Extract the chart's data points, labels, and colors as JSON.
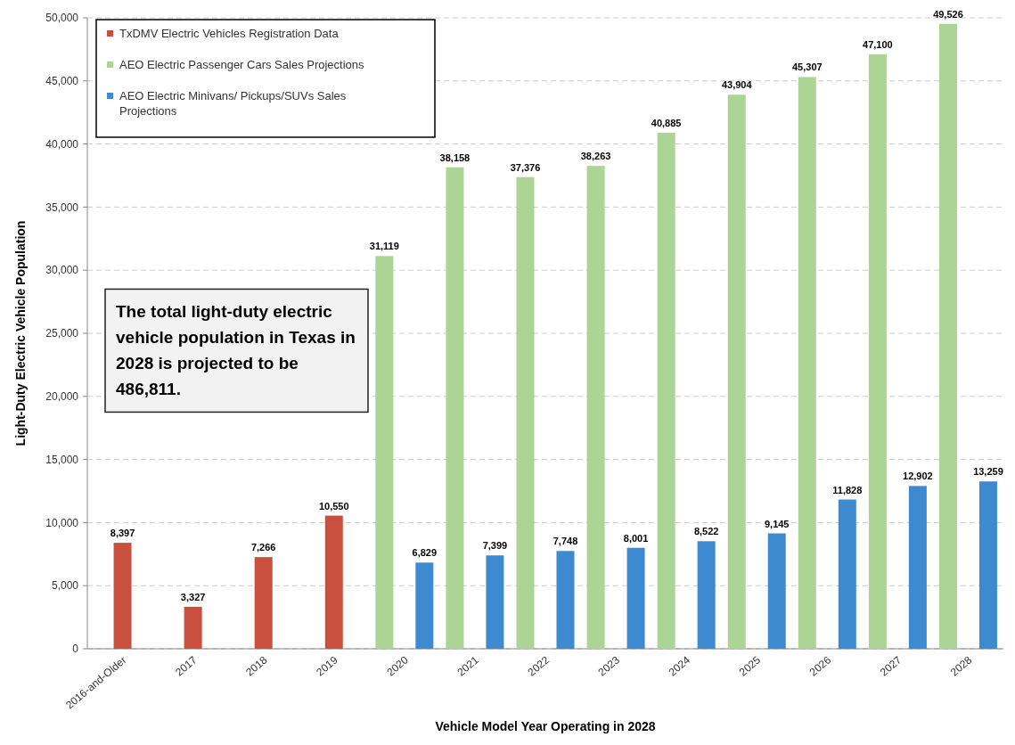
{
  "chart_data": {
    "type": "bar",
    "xlabel": "Vehicle Model Year Operating in 2028",
    "ylabel": "Light-Duty Electric Vehicle Population",
    "categories": [
      "2016-and-Older",
      "2017",
      "2018",
      "2019",
      "2020",
      "2021",
      "2022",
      "2023",
      "2024",
      "2025",
      "2026",
      "2027",
      "2028"
    ],
    "series": [
      {
        "name": "TxDMV Electric Vehicles Registration Data",
        "color": "#c9503f",
        "values": [
          8397,
          3327,
          7266,
          10550,
          null,
          null,
          null,
          null,
          null,
          null,
          null,
          null,
          null
        ],
        "value_labels": [
          "8,397",
          "3,327",
          "7,266",
          "10,550",
          null,
          null,
          null,
          null,
          null,
          null,
          null,
          null,
          null
        ]
      },
      {
        "name": "AEO Electric Passenger Cars Sales Projections",
        "color": "#abd495",
        "values": [
          null,
          null,
          null,
          null,
          31119,
          38158,
          37376,
          38263,
          40885,
          43904,
          45307,
          47100,
          49526
        ],
        "value_labels": [
          null,
          null,
          null,
          null,
          "31,119",
          "38,158",
          "37,376",
          "38,263",
          "40,885",
          "43,904",
          "45,307",
          "47,100",
          "49,526"
        ]
      },
      {
        "name": "AEO Electric Minivans/ Pickups/SUVs Sales Projections",
        "color": "#3d8ad0",
        "values": [
          null,
          null,
          null,
          null,
          6829,
          7399,
          7748,
          8001,
          8522,
          9145,
          11828,
          12902,
          13259
        ],
        "value_labels": [
          null,
          null,
          null,
          null,
          "6,829",
          "7,399",
          "7,748",
          "8,001",
          "8,522",
          "9,145",
          "11,828",
          "12,902",
          "13,259"
        ]
      }
    ],
    "ylim": [
      0,
      50000
    ],
    "yticks": [
      {
        "value": 0,
        "label": "0"
      },
      {
        "value": 5000,
        "label": "5,000"
      },
      {
        "value": 10000,
        "label": "10,000"
      },
      {
        "value": 15000,
        "label": "15,000"
      },
      {
        "value": 20000,
        "label": "20,000"
      },
      {
        "value": 25000,
        "label": "25,000"
      },
      {
        "value": 30000,
        "label": "30,000"
      },
      {
        "value": 35000,
        "label": "35,000"
      },
      {
        "value": 40000,
        "label": "40,000"
      },
      {
        "value": 45000,
        "label": "45,000"
      },
      {
        "value": 50000,
        "label": "50,000"
      }
    ],
    "grid": "y",
    "legend": "top left",
    "annotations": [
      "The total light-duty electric vehicle population in Texas in 2028 is projected to be 486,811."
    ]
  }
}
